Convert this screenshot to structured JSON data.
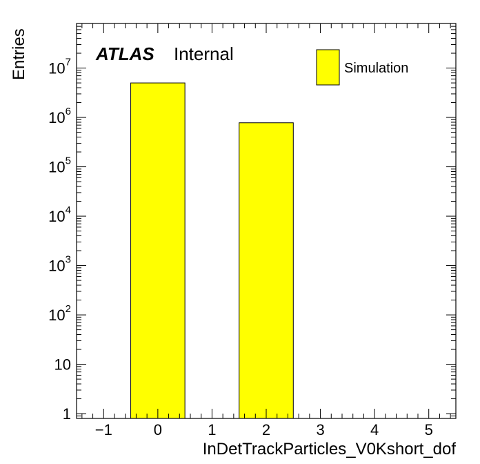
{
  "chart_data": {
    "type": "bar",
    "title": "",
    "experiment_label": "ATLAS",
    "status_label": "Internal",
    "xlabel": "InDetTrackParticles_V0Kshort_dof",
    "ylabel": "Entries",
    "xlim": [
      -1.5,
      5.5
    ],
    "ylim": [
      0.8,
      80000000
    ],
    "yscale": "log",
    "x_tick_labels": [
      "−1",
      "0",
      "1",
      "2",
      "3",
      "4",
      "5"
    ],
    "y_tick_labels": [
      {
        "base": "1",
        "exp": ""
      },
      {
        "base": "10",
        "exp": ""
      },
      {
        "base": "10",
        "exp": "2"
      },
      {
        "base": "10",
        "exp": "3"
      },
      {
        "base": "10",
        "exp": "4"
      },
      {
        "base": "10",
        "exp": "5"
      },
      {
        "base": "10",
        "exp": "6"
      },
      {
        "base": "10",
        "exp": "7"
      }
    ],
    "bin_width": 1,
    "series": [
      {
        "name": "Simulation",
        "color": "#ffff00",
        "bins": [
          {
            "x": 0,
            "value": 5000000
          },
          {
            "x": 2,
            "value": 780000
          }
        ]
      }
    ],
    "legend_position": "top-right",
    "grid": false
  }
}
